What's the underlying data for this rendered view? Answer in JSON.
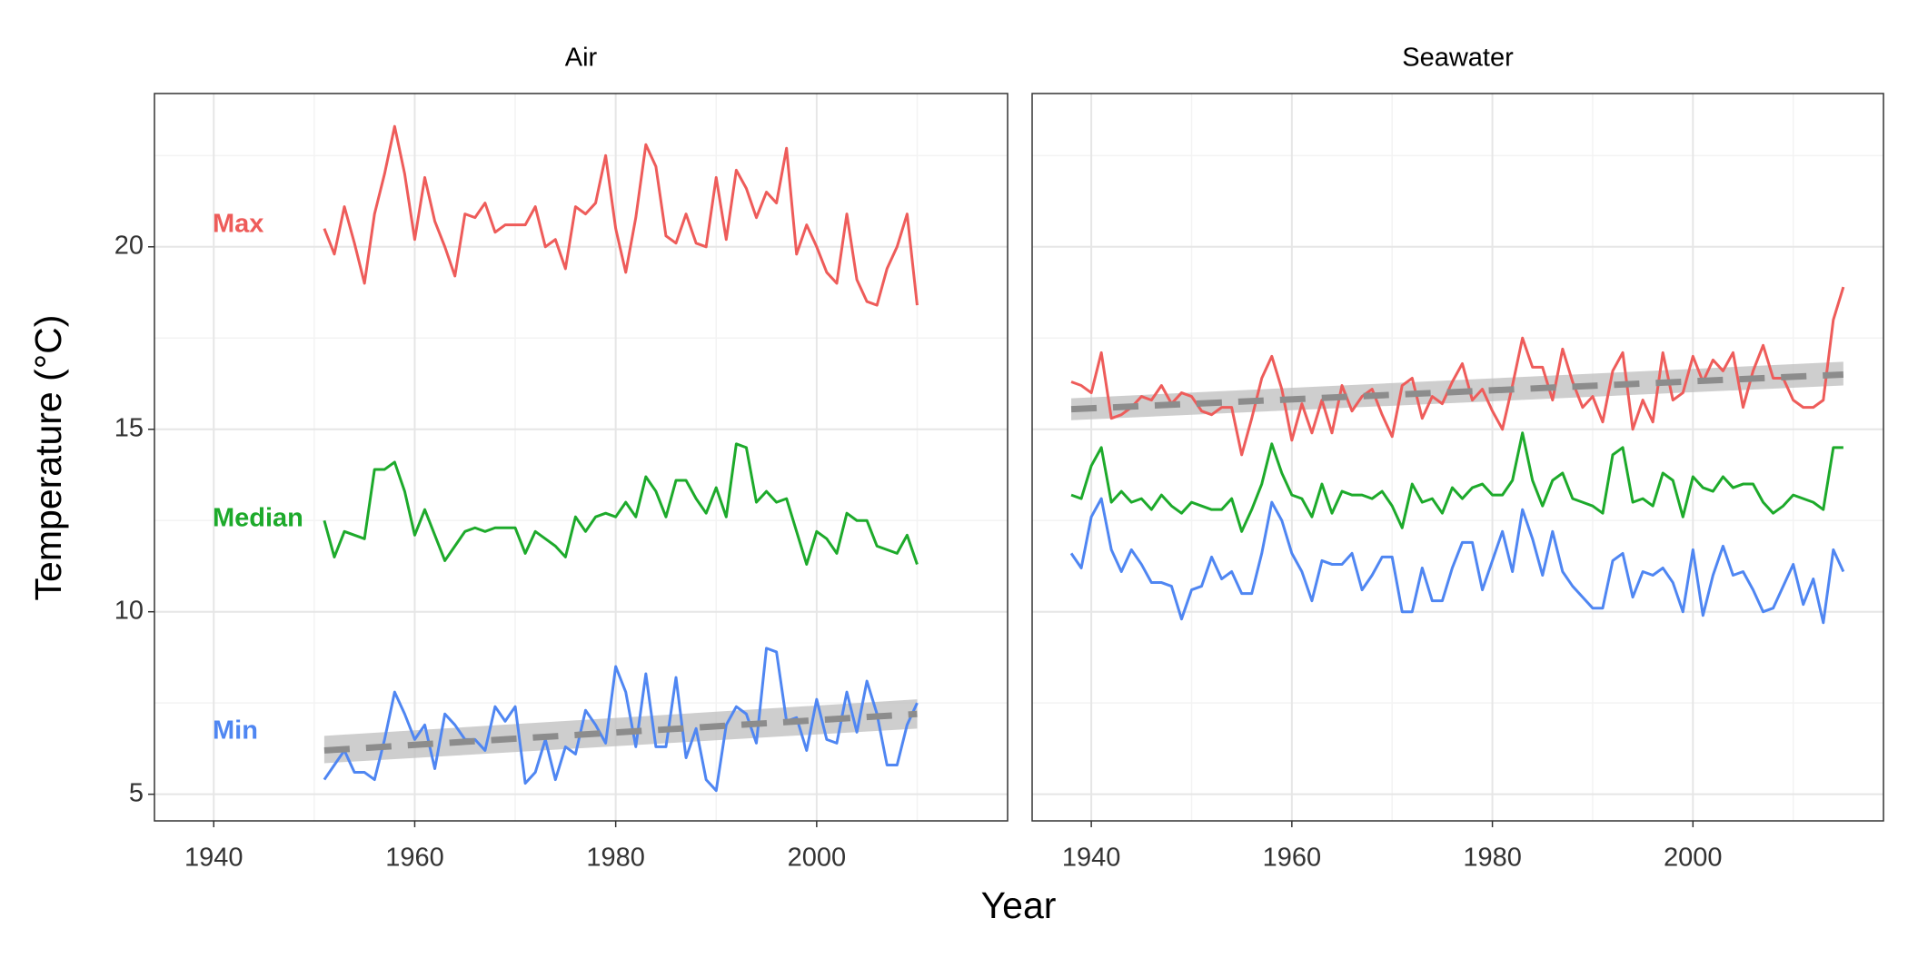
{
  "chart_data": [
    {
      "type": "line",
      "title": "Air",
      "xlabel": "Year",
      "ylabel": "Temperature (°C)",
      "xlim": [
        1934.1,
        2019.0
      ],
      "ylim": [
        4.27,
        24.2
      ],
      "xticks": [
        1940,
        1960,
        1980,
        2000
      ],
      "yticks": [
        5,
        10,
        15,
        20
      ],
      "grid": true,
      "x": [
        1951,
        1952,
        1953,
        1954,
        1955,
        1956,
        1957,
        1958,
        1959,
        1960,
        1961,
        1962,
        1963,
        1964,
        1965,
        1966,
        1967,
        1968,
        1969,
        1970,
        1971,
        1972,
        1973,
        1974,
        1975,
        1976,
        1977,
        1978,
        1979,
        1980,
        1981,
        1982,
        1983,
        1984,
        1985,
        1986,
        1987,
        1988,
        1989,
        1990,
        1991,
        1992,
        1993,
        1994,
        1995,
        1996,
        1997,
        1998,
        1999,
        2000,
        2001,
        2002,
        2003,
        2004,
        2005,
        2006,
        2007,
        2008,
        2009,
        2010
      ],
      "series": [
        {
          "name": "Max",
          "color": "#ee5c5a",
          "values": [
            20.5,
            19.8,
            21.1,
            20.1,
            19.0,
            20.9,
            22.0,
            23.3,
            22.0,
            20.2,
            21.9,
            20.7,
            20.0,
            19.2,
            20.9,
            20.8,
            21.2,
            20.4,
            20.6,
            20.6,
            20.6,
            21.1,
            20.0,
            20.2,
            19.4,
            21.1,
            20.9,
            21.2,
            22.5,
            20.5,
            19.3,
            20.8,
            22.8,
            22.2,
            20.3,
            20.1,
            20.9,
            20.1,
            20.0,
            21.9,
            20.2,
            22.1,
            21.6,
            20.8,
            21.5,
            21.2,
            22.7,
            19.8,
            20.6,
            20.0,
            19.3,
            19.0,
            20.9,
            19.1,
            18.5,
            18.4,
            19.4,
            20.0,
            20.9,
            18.4
          ]
        },
        {
          "name": "Median",
          "color": "#1daa2b",
          "values": [
            12.5,
            11.5,
            12.2,
            12.1,
            12.0,
            13.9,
            13.9,
            14.1,
            13.3,
            12.1,
            12.8,
            12.1,
            11.4,
            11.8,
            12.2,
            12.3,
            12.2,
            12.3,
            12.3,
            12.3,
            11.6,
            12.2,
            12.0,
            11.8,
            11.5,
            12.6,
            12.2,
            12.6,
            12.7,
            12.6,
            13.0,
            12.6,
            13.7,
            13.3,
            12.6,
            13.6,
            13.6,
            13.1,
            12.7,
            13.4,
            12.6,
            14.6,
            14.5,
            13.0,
            13.3,
            13.0,
            13.1,
            12.2,
            11.3,
            12.2,
            12.0,
            11.6,
            12.7,
            12.5,
            12.5,
            11.8,
            11.7,
            11.6,
            12.1,
            11.3
          ]
        },
        {
          "name": "Min",
          "color": "#4f86f2",
          "values": [
            5.4,
            5.8,
            6.2,
            5.6,
            5.6,
            5.4,
            6.5,
            7.8,
            7.2,
            6.5,
            6.9,
            5.7,
            7.2,
            6.9,
            6.5,
            6.5,
            6.2,
            7.4,
            7.0,
            7.4,
            5.3,
            5.6,
            6.5,
            5.4,
            6.3,
            6.1,
            7.3,
            6.9,
            6.4,
            8.5,
            7.8,
            6.3,
            8.3,
            6.3,
            6.3,
            8.2,
            6.0,
            6.8,
            5.4,
            5.1,
            6.9,
            7.4,
            7.2,
            6.4,
            9.0,
            8.9,
            7.0,
            7.1,
            6.2,
            7.6,
            6.5,
            6.4,
            7.8,
            6.7,
            8.1,
            7.2,
            5.8,
            5.8,
            6.9,
            7.5
          ]
        }
      ],
      "trend": {
        "color": "#8c8c8c",
        "x": [
          1951,
          2010
        ],
        "values": [
          6.2,
          7.2
        ],
        "lower": [
          5.85,
          6.8
        ],
        "upper": [
          6.6,
          7.6
        ]
      }
    },
    {
      "type": "line",
      "title": "Seawater",
      "xlim": [
        1934.1,
        2019.0
      ],
      "ylim": [
        4.27,
        24.2
      ],
      "xticks": [
        1940,
        1960,
        1980,
        2000
      ],
      "yticks": [
        5,
        10,
        15,
        20
      ],
      "grid": true,
      "x": [
        1938,
        1939,
        1940,
        1941,
        1942,
        1943,
        1944,
        1945,
        1946,
        1947,
        1948,
        1949,
        1950,
        1951,
        1952,
        1953,
        1954,
        1955,
        1956,
        1957,
        1958,
        1959,
        1960,
        1961,
        1962,
        1963,
        1964,
        1965,
        1966,
        1967,
        1968,
        1969,
        1970,
        1971,
        1972,
        1973,
        1974,
        1975,
        1976,
        1977,
        1978,
        1979,
        1980,
        1981,
        1982,
        1983,
        1984,
        1985,
        1986,
        1987,
        1988,
        1989,
        1990,
        1991,
        1992,
        1993,
        1994,
        1995,
        1996,
        1997,
        1998,
        1999,
        2000,
        2001,
        2002,
        2003,
        2004,
        2005,
        2006,
        2007,
        2008,
        2009,
        2010,
        2011,
        2012,
        2013,
        2014,
        2015
      ],
      "series": [
        {
          "color": "#ee5c5a",
          "values": [
            16.3,
            16.2,
            16.0,
            17.1,
            15.3,
            15.4,
            15.6,
            15.9,
            15.8,
            16.2,
            15.7,
            16.0,
            15.9,
            15.5,
            15.4,
            15.6,
            15.6,
            14.3,
            15.3,
            16.4,
            17.0,
            16.1,
            14.7,
            15.7,
            14.9,
            15.8,
            14.9,
            16.2,
            15.5,
            15.9,
            16.1,
            15.4,
            14.8,
            16.2,
            16.4,
            15.3,
            15.9,
            15.7,
            16.3,
            16.8,
            15.8,
            16.1,
            15.5,
            15.0,
            16.2,
            17.5,
            16.7,
            16.7,
            15.8,
            17.2,
            16.3,
            15.6,
            15.9,
            15.2,
            16.6,
            17.1,
            15.0,
            15.8,
            15.2,
            17.1,
            15.8,
            16.0,
            17.0,
            16.3,
            16.9,
            16.6,
            17.1,
            15.6,
            16.6,
            17.3,
            16.4,
            16.4,
            15.8,
            15.6,
            15.6,
            15.8,
            18.0,
            18.9
          ]
        },
        {
          "color": "#1daa2b",
          "values": [
            13.2,
            13.1,
            14.0,
            14.5,
            13.0,
            13.3,
            13.0,
            13.1,
            12.8,
            13.2,
            12.9,
            12.7,
            13.0,
            12.9,
            12.8,
            12.8,
            13.1,
            12.2,
            12.8,
            13.5,
            14.6,
            13.8,
            13.2,
            13.1,
            12.6,
            13.5,
            12.7,
            13.3,
            13.2,
            13.2,
            13.1,
            13.3,
            12.9,
            12.3,
            13.5,
            13.0,
            13.1,
            12.7,
            13.4,
            13.1,
            13.4,
            13.5,
            13.2,
            13.2,
            13.6,
            14.9,
            13.6,
            12.9,
            13.6,
            13.8,
            13.1,
            13.0,
            12.9,
            12.7,
            14.3,
            14.5,
            13.0,
            13.1,
            12.9,
            13.8,
            13.6,
            12.6,
            13.7,
            13.4,
            13.3,
            13.7,
            13.4,
            13.5,
            13.5,
            13.0,
            12.7,
            12.9,
            13.2,
            13.1,
            13.0,
            12.8,
            14.5,
            14.5
          ]
        },
        {
          "color": "#4f86f2",
          "values": [
            11.6,
            11.2,
            12.6,
            13.1,
            11.7,
            11.1,
            11.7,
            11.3,
            10.8,
            10.8,
            10.7,
            9.8,
            10.6,
            10.7,
            11.5,
            10.9,
            11.1,
            10.5,
            10.5,
            11.6,
            13.0,
            12.5,
            11.6,
            11.1,
            10.3,
            11.4,
            11.3,
            11.3,
            11.6,
            10.6,
            11.0,
            11.5,
            11.5,
            10.0,
            10.0,
            11.2,
            10.3,
            10.3,
            11.2,
            11.9,
            11.9,
            10.6,
            11.4,
            12.2,
            11.1,
            12.8,
            12.0,
            11.0,
            12.2,
            11.1,
            10.7,
            10.4,
            10.1,
            10.1,
            11.4,
            11.6,
            10.4,
            11.1,
            11.0,
            11.2,
            10.8,
            10.0,
            11.7,
            9.9,
            11.0,
            11.8,
            11.0,
            11.1,
            10.6,
            10.0,
            10.1,
            10.7,
            11.3,
            10.2,
            10.9,
            9.7,
            11.7,
            11.1
          ]
        }
      ],
      "trend": {
        "color": "#8c8c8c",
        "x": [
          1938,
          2015
        ],
        "values": [
          15.55,
          16.5
        ],
        "lower": [
          15.25,
          16.2
        ],
        "upper": [
          15.85,
          16.85
        ]
      }
    }
  ]
}
